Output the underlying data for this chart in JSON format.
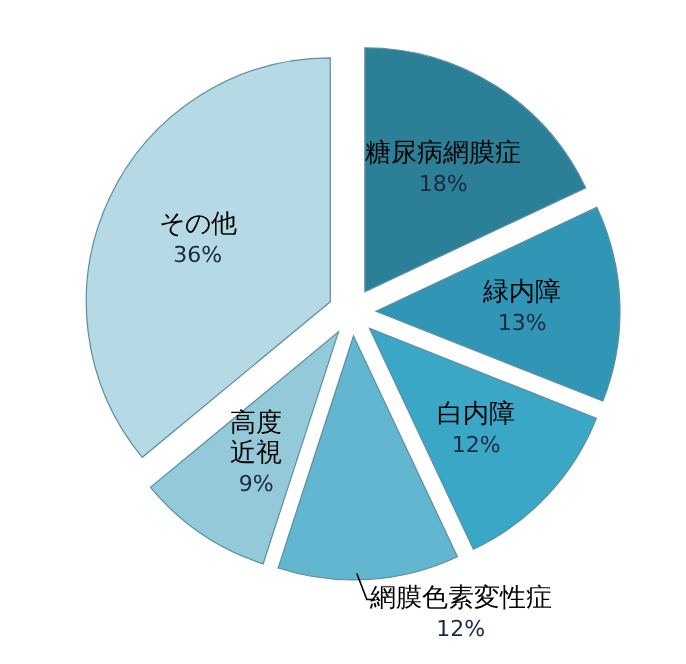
{
  "chart_data": {
    "type": "pie",
    "categories": [
      "糖尿病網膜症",
      "緑内障",
      "白内障",
      "網膜色素変性症",
      "高度近視",
      "その他"
    ],
    "values": [
      18,
      13,
      12,
      12,
      9,
      36
    ],
    "value_labels": [
      "18%",
      "13%",
      "12%",
      "12%",
      "9%",
      "36%"
    ],
    "colors": [
      "#2b8098",
      "#3196b5",
      "#3aa7c6",
      "#62b6cf",
      "#94c9da",
      "#b6d9e6"
    ]
  }
}
